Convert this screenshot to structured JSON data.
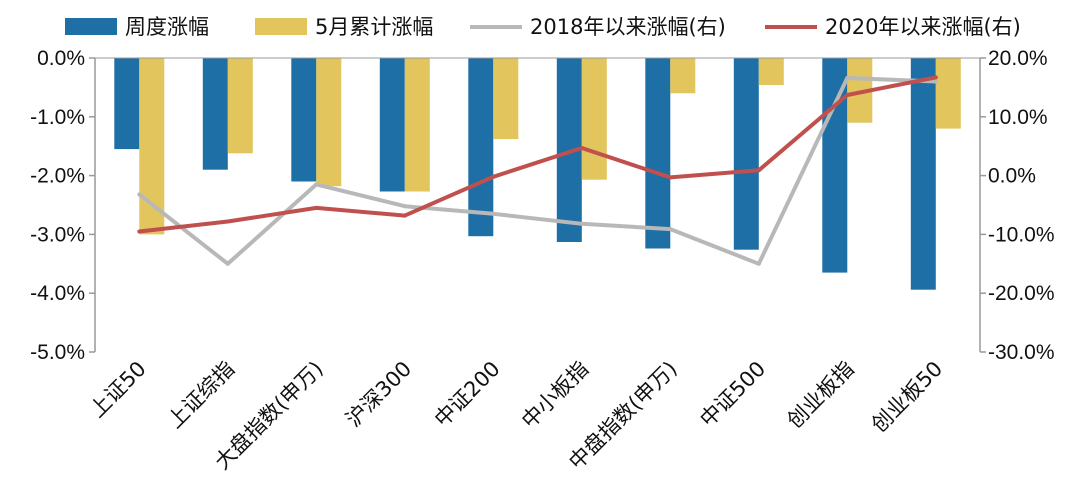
{
  "chart_data": {
    "type": "bar",
    "categories": [
      "上证50",
      "上证综指",
      "大盘指数(申万)",
      "沪深300",
      "中证200",
      "中小板指",
      "中盘指数(申万)",
      "中证500",
      "创业板指",
      "创业板50"
    ],
    "series": [
      {
        "name": "周度涨幅",
        "kind": "bar",
        "axis": "left",
        "color": "#1f6fa7",
        "values": [
          -1.55,
          -1.9,
          -2.1,
          -2.27,
          -3.03,
          -3.13,
          -3.24,
          -3.26,
          -3.65,
          -3.94
        ]
      },
      {
        "name": "5月累计涨幅",
        "kind": "bar",
        "axis": "left",
        "color": "#e2c55c",
        "values": [
          -3.0,
          -1.62,
          -2.18,
          -2.27,
          -1.38,
          -2.07,
          -0.6,
          -0.46,
          -1.1,
          -1.2
        ]
      },
      {
        "name": "2018年以来涨幅(右)",
        "kind": "line",
        "axis": "right",
        "color": "#b8b8b8",
        "values": [
          -3.2,
          -15.0,
          -1.5,
          -5.2,
          -6.5,
          -8.2,
          -9.1,
          -15.0,
          16.6,
          16.0
        ]
      },
      {
        "name": "2020年以来涨幅(右)",
        "kind": "line",
        "axis": "right",
        "color": "#c0504d",
        "values": [
          -9.5,
          -7.8,
          -5.5,
          -6.8,
          -0.2,
          4.7,
          -0.3,
          0.9,
          13.7,
          16.7
        ]
      }
    ],
    "y_left": {
      "min": -5,
      "max": 0,
      "ticks": [
        "0.0%",
        "-1.0%",
        "-2.0%",
        "-3.0%",
        "-4.0%",
        "-5.0%"
      ]
    },
    "y_right": {
      "min": -30,
      "max": 20,
      "ticks": [
        "20.0%",
        "10.0%",
        "0.0%",
        "-10.0%",
        "-20.0%",
        "-30.0%"
      ]
    },
    "legend": [
      "周度涨幅",
      "5月累计涨幅",
      "2018年以来涨幅(右)",
      "2020年以来涨幅(右)"
    ],
    "legend_position": "top",
    "grid": false
  }
}
